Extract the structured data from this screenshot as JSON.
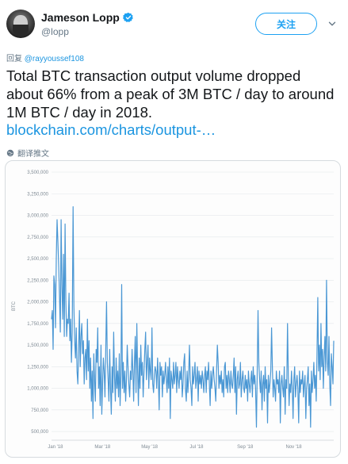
{
  "user": {
    "display_name": "Jameson Lopp",
    "handle": "@lopp",
    "follow_label": "关注"
  },
  "reply": {
    "prefix": "回复",
    "mention": "@rayyoussef108"
  },
  "tweet": {
    "text": "Total BTC transaction output volume dropped about 66% from a peak of 3M BTC / day to around 1M BTC / day in 2018.",
    "link": "blockchain.com/charts/output-…",
    "translate_label": "翻译推文"
  },
  "colors": {
    "brand_blue": "#1da1f2",
    "link_blue": "#1b95e0",
    "series_blue": "#4a97d4",
    "muted": "#657786"
  },
  "icons": [
    "verified-icon",
    "caret-down-icon",
    "globe-icon"
  ],
  "chart_data": {
    "type": "line",
    "title": "",
    "xlabel": "",
    "ylabel": "BTC",
    "ylim": [
      400000,
      3500000
    ],
    "yticks": [
      "3,500,000",
      "3,250,000",
      "3,000,000",
      "2,750,000",
      "2,500,000",
      "2,250,000",
      "2,000,000",
      "1,750,000",
      "1,500,000",
      "1,250,000",
      "1,000,000",
      "750,000",
      "500,000"
    ],
    "ytick_values": [
      3500000,
      3250000,
      3000000,
      2750000,
      2500000,
      2250000,
      2000000,
      1750000,
      1500000,
      1250000,
      1000000,
      750000,
      500000
    ],
    "xticks": [
      "Jan '18",
      "Mar '18",
      "May '18",
      "Jul '18",
      "Sep '18",
      "Nov '18"
    ],
    "xtick_days": [
      5,
      65,
      125,
      185,
      247,
      309
    ],
    "x_max_day": 360,
    "grid": true,
    "series": [
      {
        "values_by_month": [
          {
            "month": "Dec '17",
            "values": [
              1800000,
              1900000,
              1450000,
              2300000,
              2200000,
              1700000,
              2500000,
              2950000,
              2700000,
              2400000,
              2050000,
              1650000
            ]
          },
          {
            "month": "Jan '18",
            "values": [
              2950000,
              2200000,
              1800000,
              2550000,
              1600000,
              2900000,
              2000000,
              1600000,
              1800000,
              1750000,
              2100000,
              1550000,
              1800000,
              1300000,
              1650000,
              3100000,
              1950000,
              1550000,
              1350000,
              1700000,
              1200000,
              1050000,
              1450000,
              1900000,
              1250000,
              1600000,
              1750000,
              1400000,
              1550000,
              1050000
            ]
          },
          {
            "month": "Feb '18",
            "values": [
              1350000,
              1450000,
              1100000,
              1800000,
              1200000,
              1550000,
              1000000,
              1350000,
              850000,
              1200000,
              650000,
              1400000,
              1100000,
              850000,
              1450000,
              1300000,
              1700000,
              1000000,
              1250000,
              800000,
              1500000,
              700000,
              1050000,
              1350000,
              1200000,
              900000,
              1450000,
              2000000
            ]
          },
          {
            "month": "Mar '18",
            "values": [
              1300000,
              1100000,
              850000,
              1450000,
              1000000,
              700000,
              1250000,
              950000,
              1650000,
              1150000,
              850000,
              1350000,
              1000000,
              1200000,
              900000,
              1400000,
              800000,
              1150000,
              2200000,
              1000000,
              1300000,
              950000,
              1200000,
              850000,
              1100000,
              1500000,
              1250000,
              1050000,
              900000,
              1200000,
              1100000
            ]
          },
          {
            "month": "Apr '18",
            "values": [
              1450000,
              1200000,
              850000,
              1300000,
              1600000,
              950000,
              1750000,
              1200000,
              800000,
              1350000,
              1000000,
              1500000,
              1150000,
              1300000,
              900000,
              1200000,
              1450000,
              1650000,
              1100000,
              1300000,
              1500000,
              1000000,
              1350000,
              1200000,
              1100000,
              1700000,
              1050000,
              950000,
              1150000,
              1250000
            ]
          },
          {
            "month": "May '18",
            "values": [
              1200000,
              1000000,
              1350000,
              1100000,
              750000,
              1300000,
              1150000,
              1250000,
              900000,
              1200000,
              1050000,
              1150000,
              1300000,
              1100000,
              950000,
              1250000,
              1000000,
              1350000,
              650000,
              1200000,
              1100000,
              1000000,
              1300000,
              1050000,
              1150000,
              1300000,
              950000,
              1250000,
              1100000,
              1000000,
              1200000
            ]
          },
          {
            "month": "Jun '18",
            "values": [
              1100000,
              1250000,
              900000,
              1050000,
              1300000,
              1400000,
              1000000,
              850000,
              1200000,
              950000,
              1150000,
              1500000,
              1100000,
              1000000,
              800000,
              1250000,
              1050000,
              1150000,
              1300000,
              1000000,
              1100000,
              1250000,
              850000,
              1200000,
              1050000,
              1150000,
              1000000,
              1200000,
              1100000,
              950000
            ]
          },
          {
            "month": "Jul '18",
            "values": [
              1150000,
              1250000,
              950000,
              1200000,
              1100000,
              1300000,
              1050000,
              800000,
              1200000,
              1000000,
              1150000,
              1250000,
              1100000,
              1000000,
              850000,
              1200000,
              1500000,
              1300000,
              1000000,
              1150000,
              1050000,
              1200000,
              950000,
              1100000,
              900000,
              1250000,
              1300000,
              1000000,
              1150000,
              950000,
              1200000
            ]
          },
          {
            "month": "Aug '18",
            "values": [
              1100000,
              950000,
              1200000,
              1050000,
              1000000,
              1150000,
              1350000,
              950000,
              1250000,
              700000,
              1100000,
              1200000,
              1000000,
              1050000,
              1300000,
              900000,
              1100000,
              1200000,
              1000000,
              950000,
              1150000,
              1000000,
              1100000,
              850000,
              1200000,
              1050000,
              950000,
              1100000,
              1200000,
              900000,
              1250000
            ]
          },
          {
            "month": "Sep '18",
            "values": [
              1050000,
              1150000,
              1000000,
              550000,
              1200000,
              1900000,
              1300000,
              1100000,
              950000,
              1200000,
              750000,
              1050000,
              1150000,
              850000,
              1250000,
              1000000,
              1100000,
              600000,
              1150000,
              950000,
              1050000,
              1200000,
              1700000,
              1250000,
              900000,
              1100000,
              1000000,
              850000,
              1200000,
              1050000
            ]
          },
          {
            "month": "Oct '18",
            "values": [
              1100000,
              950000,
              1200000,
              600000,
              1050000,
              1150000,
              1000000,
              900000,
              1250000,
              700000,
              1100000,
              1000000,
              1750000,
              1150000,
              800000,
              1050000,
              950000,
              1200000,
              1000000,
              650000,
              1100000,
              1250000,
              900000,
              1050000,
              1150000,
              1000000,
              600000,
              1200000,
              950000,
              1100000,
              1050000
            ]
          },
          {
            "month": "Nov '18",
            "values": [
              1200000,
              900000,
              1050000,
              1150000,
              650000,
              1000000,
              1100000,
              1250000,
              800000,
              1050000,
              550000,
              1200000,
              950000,
              1100000,
              1300000,
              1000000,
              1150000,
              850000,
              1400000,
              2050000,
              1200000,
              1500000,
              1100000,
              1750000,
              1250000,
              1450000,
              1000000,
              1350000,
              1600000,
              1200000
            ]
          },
          {
            "month": "Dec '18",
            "values": [
              2250000,
              1300000,
              1150000,
              1600000,
              1050000,
              800000,
              1400000,
              1250000,
              1050000,
              1550000
            ]
          }
        ]
      }
    ]
  }
}
